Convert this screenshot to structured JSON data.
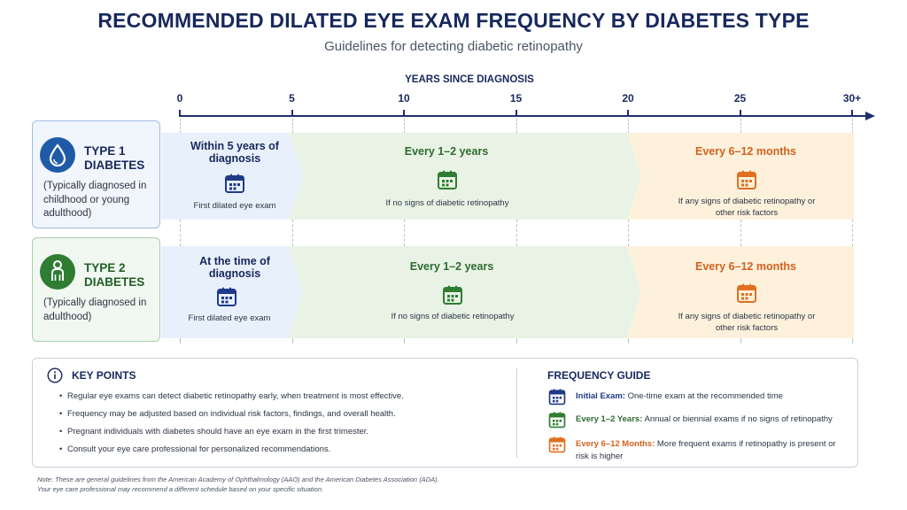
{
  "title": "RECOMMENDED DILATED EYE EXAM FREQUENCY BY DIABETES TYPE",
  "subtitle": "Guidelines for detecting diabetic retinopathy",
  "timeline": {
    "axis_label": "YEARS SINCE DIAGNOSIS",
    "ticks": [
      {
        "value": 0,
        "label": "0"
      },
      {
        "value": 5,
        "label": "5"
      },
      {
        "value": 10,
        "label": "10"
      },
      {
        "value": 15,
        "label": "15"
      },
      {
        "value": 20,
        "label": "20"
      },
      {
        "value": 25,
        "label": "25"
      },
      {
        "value": 30,
        "label": "30+"
      }
    ]
  },
  "rows": [
    {
      "name_line1": "TYPE 1",
      "name_line2": "DIABETES",
      "description": "(Typically diagnosed in childhood or young adulthood)",
      "icon": "water-drop-icon",
      "segments": [
        {
          "title": "Within 5 years of diagnosis",
          "note": "First dilated eye exam",
          "color": "#1f3a8a",
          "start_years": 0,
          "end_years": 5
        },
        {
          "title": "Every 1–2 years",
          "note": "If no signs of diabetic retinopathy",
          "color": "#2e7d32",
          "start_years": 5,
          "end_years": 20
        },
        {
          "title": "Every 6–12 months",
          "note": "If any signs of diabetic retinopathy or other risk factors",
          "color": "#e0701f",
          "start_years": 20,
          "end_years": 30
        }
      ]
    },
    {
      "name_line1": "TYPE 2",
      "name_line2": "DIABETES",
      "description": "(Typically diagnosed in adulthood)",
      "icon": "person-icon",
      "segments": [
        {
          "title": "At the time of diagnosis",
          "note": "First dilated eye exam",
          "color": "#1f3a8a",
          "start_years": 0,
          "end_years": 5
        },
        {
          "title": "Every 1–2 years",
          "note": "If no signs of diabetic retinopathy",
          "color": "#2e7d32",
          "start_years": 5,
          "end_years": 20
        },
        {
          "title": "Every 6–12 months",
          "note": "If any signs of diabetic retinopathy or other risk factors",
          "color": "#e0701f",
          "start_years": 20,
          "end_years": 30
        }
      ]
    }
  ],
  "key_points": {
    "title": "KEY POINTS",
    "items": [
      "Regular eye exams can detect diabetic retinopathy early, when treatment is most effective.",
      "Frequency may be adjusted based on individual risk factors, findings, and overall health.",
      "Pregnant individuals with diabetes should have an eye exam in the first trimester.",
      "Consult your eye care professional for personalized recommendations."
    ]
  },
  "frequency_guide": {
    "title": "FREQUENCY GUIDE",
    "items": [
      {
        "label": "Initial Exam:",
        "text": "One-time exam at the recommended time",
        "color": "#1f3a8a"
      },
      {
        "label": "Every 1–2 Years:",
        "text": "Annual or biennial exams if no signs of retinopathy",
        "color": "#2e7d32"
      },
      {
        "label": "Every 6–12 Months:",
        "text": "More frequent exams if retinopathy is present or risk is higher",
        "color": "#e0701f"
      }
    ]
  },
  "footnote": {
    "line1": "Note: These are general guidelines from the American Academy of Ophthalmology (AAO) and the American Diabetes Association (ADA).",
    "line2": "Your eye care professional may recommend a different schedule based on your specific situation."
  }
}
